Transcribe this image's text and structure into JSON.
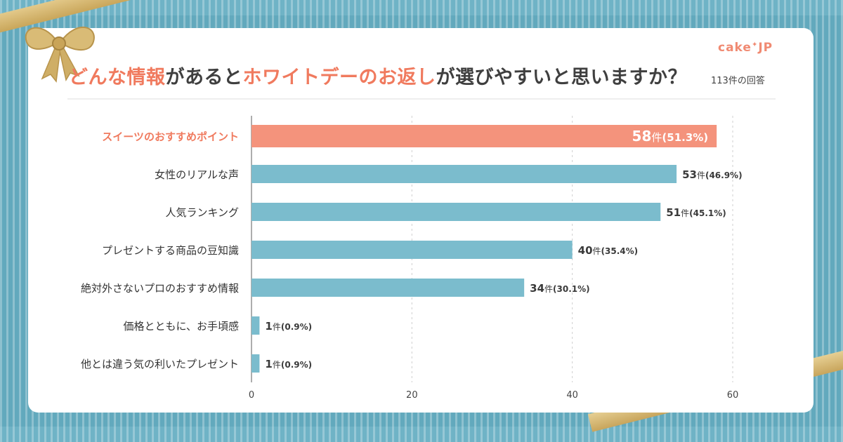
{
  "header": {
    "title_parts": [
      {
        "text": "どんな情報",
        "highlight": true
      },
      {
        "text": "があると",
        "highlight": false
      },
      {
        "text": "ホワイトデーのお返し",
        "highlight": true
      },
      {
        "text": "が選びやすいと思いますか？",
        "highlight": false
      }
    ],
    "responses": "113件の回答",
    "logo": "cake",
    "logo_suffix": "JP"
  },
  "colors": {
    "highlight": "#f07a5e",
    "bar_top": "#f4937c",
    "bar": "#7bbccd",
    "text": "#3a3a3a"
  },
  "chart_data": {
    "type": "bar",
    "orientation": "horizontal",
    "categories": [
      "スイーツのおすすめポイント",
      "女性のリアルな声",
      "人気ランキング",
      "プレゼントする商品の豆知識",
      "絶対外さないプロのおすすめ情報",
      "価格とともに、お手頃感",
      "他とは違う気の利いたプレゼント"
    ],
    "values": [
      58,
      53,
      51,
      40,
      34,
      1,
      1
    ],
    "percents": [
      "(51.3%)",
      "(46.9%)",
      "(45.1%)",
      "(35.4%)",
      "(30.1%)",
      "(0.9%)",
      "(0.9%)"
    ],
    "unit": "件",
    "xlim": [
      0,
      60
    ],
    "xticks": [
      0,
      20,
      40,
      60
    ],
    "grid": "dashed vertical"
  }
}
